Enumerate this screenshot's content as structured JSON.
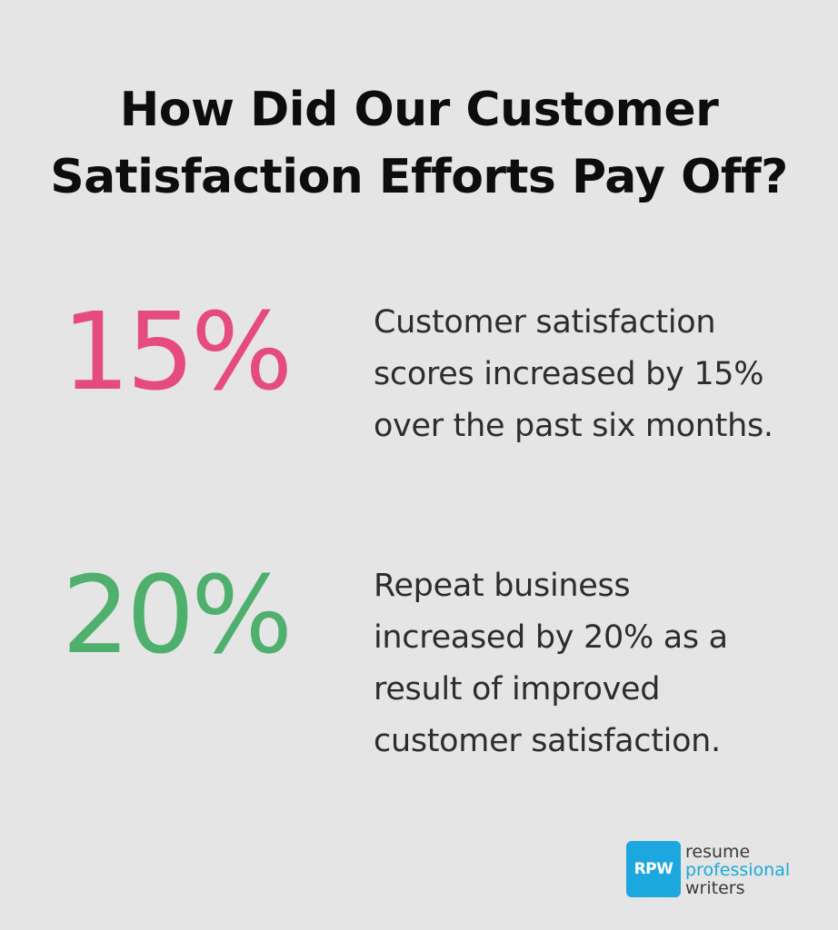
{
  "title_line1": "How Did Our Customer",
  "title_line2": "Satisfaction Efforts Pay Off?",
  "stats": [
    {
      "value": "15%",
      "description": "Customer satisfaction scores increased by 15% over the past six months.",
      "color": "#e54c7d"
    },
    {
      "value": "20%",
      "description": "Repeat business increased by 20% as a result of improved customer satisfaction.",
      "color": "#4faf6d"
    }
  ],
  "brand": {
    "mark": "RPW",
    "word1": "resume",
    "word2": "professional",
    "word3": "writers",
    "accent_color": "#1ca8de"
  },
  "background_color": "#e4e5e4"
}
